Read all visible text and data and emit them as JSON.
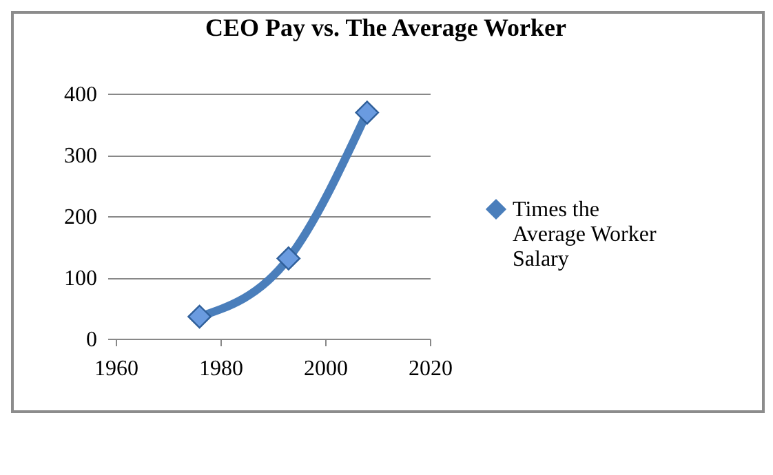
{
  "chart_data": {
    "type": "line",
    "title": "CEO Pay vs. The Average Worker",
    "x": [
      1976,
      1993,
      2008
    ],
    "series": [
      {
        "name": "Times the Average Worker Salary",
        "color": "#4a7ebb",
        "values": [
          36,
          131,
          369
        ]
      }
    ],
    "xlim": [
      1960,
      2020
    ],
    "xticks": [
      1960,
      1980,
      2000,
      2020
    ],
    "ylim": [
      0,
      400
    ],
    "yticks": [
      0,
      100,
      200,
      300,
      400
    ],
    "grid": "y",
    "legend": "right",
    "marker": "diamond",
    "line_style": "solid"
  }
}
